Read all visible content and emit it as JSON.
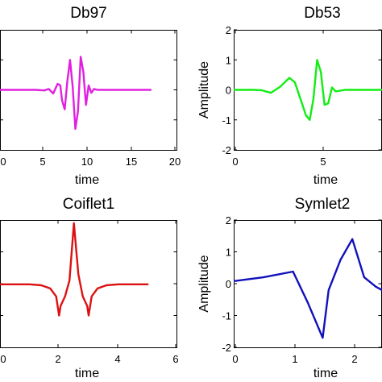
{
  "chart_data": [
    {
      "type": "line",
      "title": "Db97",
      "xlabel": "time",
      "ylabel": "",
      "xlim": [
        0,
        20
      ],
      "ylim": [
        -2,
        2
      ],
      "xticks": [
        "0",
        "5",
        "10",
        "15",
        "20"
      ],
      "yticks": [],
      "series": [
        {
          "color": "#e020e0",
          "x": [
            0,
            4,
            5,
            5.5,
            6,
            6.5,
            6.8,
            7,
            7.3,
            7.6,
            7.9,
            8.2,
            8.5,
            8.8,
            9.1,
            9.4,
            9.7,
            10,
            10.3,
            10.6,
            11,
            12,
            17
          ],
          "y": [
            0,
            0,
            -0.02,
            0.03,
            -0.12,
            0.2,
            0.15,
            -0.35,
            -0.65,
            0.3,
            1.0,
            0.1,
            -1.3,
            -0.7,
            1.1,
            0.6,
            -0.5,
            0.15,
            -0.1,
            0.03,
            0,
            0,
            0
          ]
        }
      ]
    },
    {
      "type": "line",
      "title": "Db53",
      "xlabel": "time",
      "ylabel": "Amplitude",
      "xlim": [
        0,
        8
      ],
      "ylim": [
        -2,
        2
      ],
      "xticks": [
        "0",
        "5"
      ],
      "yticks": [
        "-2",
        "-1",
        "0",
        "1",
        "2"
      ],
      "series": [
        {
          "color": "#11ee11",
          "x": [
            0,
            0.5,
            1,
            1.5,
            2,
            2.5,
            3,
            3.3,
            3.6,
            3.9,
            4.1,
            4.3,
            4.5,
            4.7,
            4.9,
            5.1,
            5.3,
            5.5,
            6,
            6.5,
            7,
            8
          ],
          "y": [
            0,
            0,
            0,
            -0.01,
            -0.1,
            0.1,
            0.4,
            0.25,
            -0.3,
            -0.85,
            -1.0,
            -0.3,
            1.0,
            0.6,
            -0.5,
            -0.45,
            0.08,
            -0.05,
            0,
            0,
            0,
            0
          ]
        }
      ]
    },
    {
      "type": "line",
      "title": "Coiflet1",
      "xlabel": "time",
      "ylabel": "",
      "xlim": [
        0,
        6
      ],
      "ylim": [
        -2,
        2
      ],
      "xticks": [
        "0",
        "2",
        "4",
        "6"
      ],
      "yticks": [],
      "series": [
        {
          "color": "#dd1111",
          "x": [
            0,
            1,
            1.4,
            1.7,
            1.9,
            2.0,
            2.05,
            2.2,
            2.35,
            2.5,
            2.65,
            2.8,
            2.95,
            3.0,
            3.1,
            3.3,
            3.6,
            4,
            5
          ],
          "y": [
            -0.02,
            -0.02,
            -0.05,
            -0.15,
            -0.4,
            -1.0,
            -0.7,
            -0.4,
            0.1,
            1.9,
            0.3,
            -0.4,
            -0.7,
            -1.0,
            -0.4,
            -0.15,
            -0.05,
            -0.02,
            -0.02
          ]
        }
      ]
    },
    {
      "type": "line",
      "title": "Symlet2",
      "xlabel": "time",
      "ylabel": "Amplitude",
      "xlim": [
        0,
        2.5
      ],
      "ylim": [
        -2,
        2
      ],
      "xticks": [
        "0",
        "1",
        "2"
      ],
      "yticks": [
        "-2",
        "-1",
        "0",
        "1",
        "2"
      ],
      "series": [
        {
          "color": "#1111bb",
          "x": [
            0,
            0.5,
            1.0,
            1.25,
            1.5,
            1.6,
            1.8,
            2.0,
            2.2,
            2.4,
            2.5
          ],
          "y": [
            0.08,
            0.2,
            0.38,
            -0.6,
            -1.7,
            -0.2,
            0.75,
            1.4,
            0.2,
            -0.1,
            -0.2
          ]
        }
      ]
    }
  ]
}
